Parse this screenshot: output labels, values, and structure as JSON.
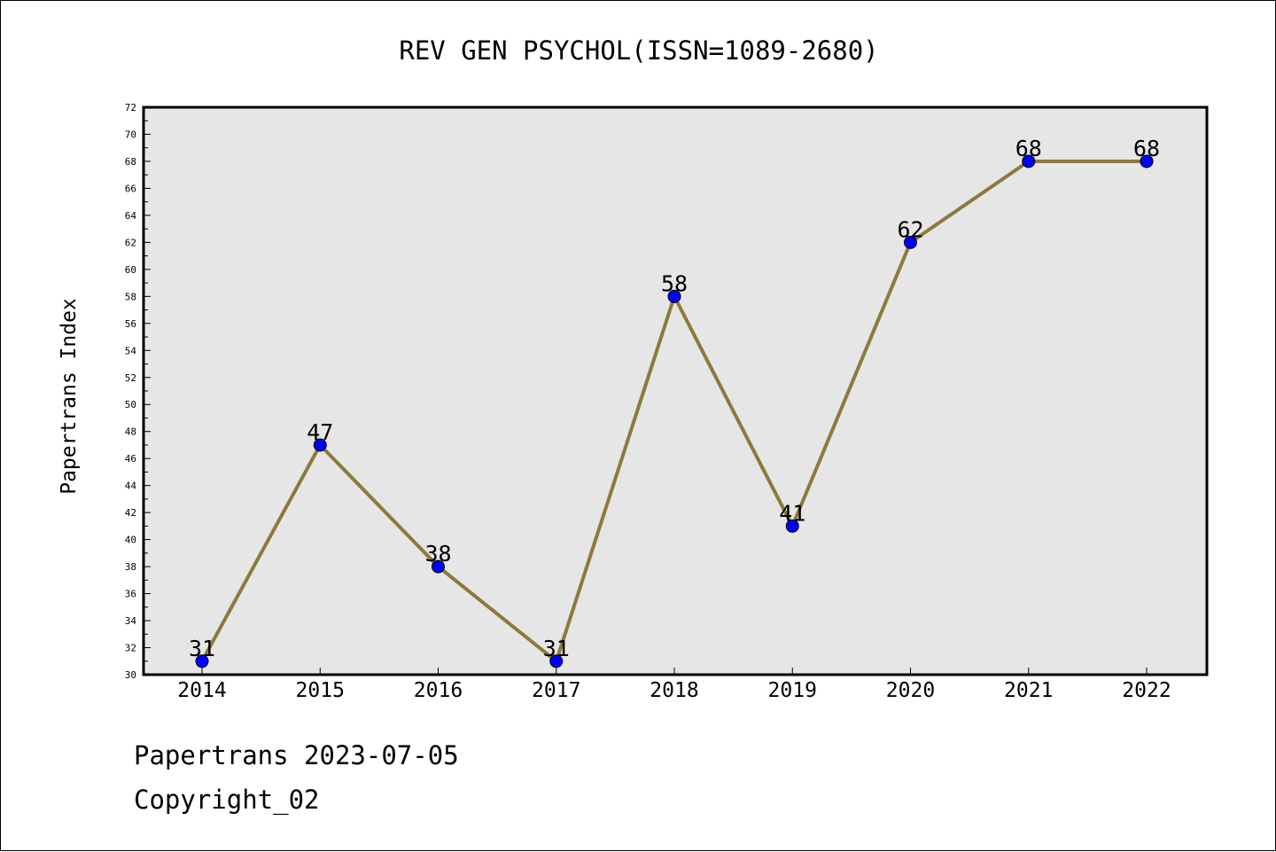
{
  "chart_data": {
    "type": "line",
    "title": "REV GEN PSYCHOL(ISSN=1089-2680)",
    "ylabel": "Papertrans Index",
    "xlabel": "",
    "categories": [
      "2014",
      "2015",
      "2016",
      "2017",
      "2018",
      "2019",
      "2020",
      "2021",
      "2022"
    ],
    "series": [
      {
        "values": [
          31,
          47,
          38,
          31,
          58,
          41,
          62,
          68,
          68
        ]
      }
    ],
    "ylim": [
      30,
      72
    ],
    "y_major_ticks": [
      "30",
      "32",
      "34",
      "36",
      "38",
      "40",
      "42",
      "44",
      "46",
      "48",
      "50",
      "52",
      "54",
      "56",
      "58",
      "60",
      "62",
      "64",
      "66",
      "68",
      "70",
      "72"
    ],
    "grid": false,
    "legend": "none",
    "data_labels": true
  },
  "colors": {
    "plot_background": "#e6e6e6",
    "line": "#8c7a3c",
    "marker": "#0000ff",
    "text": "#000000"
  },
  "footer": {
    "line1": "Papertrans 2023-07-05",
    "line2": "Copyright_02"
  }
}
